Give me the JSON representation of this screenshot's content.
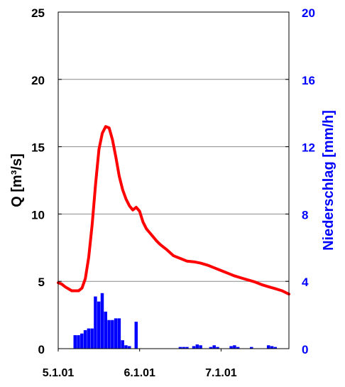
{
  "chart_data": {
    "type": "line",
    "title": "",
    "x_ticks": [
      "5.1.01",
      "6.1.01",
      "7.1.01"
    ],
    "xlim": [
      "5.1.01 00:00",
      "7.1.01 20:00"
    ],
    "y_left": {
      "label": "Q [m³/s]",
      "ticks": [
        "0",
        "5",
        "10",
        "15",
        "20",
        "25"
      ],
      "range": [
        0,
        25
      ],
      "color": "#000000"
    },
    "y_right": {
      "label": "Niederschlag [mm/h]",
      "ticks": [
        "0",
        "4",
        "8",
        "12",
        "16",
        "20"
      ],
      "range": [
        0,
        20
      ],
      "color": "#0000ff"
    },
    "grid": "horizontal",
    "series": [
      {
        "type": "line",
        "axis": "left",
        "color": "#ff0000",
        "x_hours": [
          0,
          1,
          2,
          3,
          4,
          5,
          6,
          7,
          8,
          9,
          10,
          11,
          12,
          13,
          14,
          15,
          16,
          17,
          18,
          19,
          20,
          21,
          22,
          23,
          24,
          25,
          26,
          27,
          28,
          29,
          30,
          31,
          32,
          34,
          36,
          38,
          40,
          42,
          44,
          46,
          48,
          50,
          52,
          54,
          56,
          58,
          60,
          62,
          64,
          66,
          68
        ],
        "x": [
          "5.1.01 00:00",
          "5.1.01 01:00",
          "5.1.01 02:00",
          "5.1.01 03:00",
          "5.1.01 04:00",
          "5.1.01 05:00",
          "5.1.01 06:00",
          "5.1.01 07:00",
          "5.1.01 08:00",
          "5.1.01 09:00",
          "5.1.01 10:00",
          "5.1.01 11:00",
          "5.1.01 12:00",
          "5.1.01 13:00",
          "5.1.01 14:00",
          "5.1.01 15:00",
          "5.1.01 16:00",
          "5.1.01 17:00",
          "5.1.01 18:00",
          "5.1.01 19:00",
          "5.1.01 20:00",
          "5.1.01 21:00",
          "5.1.01 22:00",
          "5.1.01 23:00",
          "6.1.01 00:00",
          "6.1.01 01:00",
          "6.1.01 02:00",
          "6.1.01 03:00",
          "6.1.01 04:00",
          "6.1.01 05:00",
          "6.1.01 06:00",
          "6.1.01 07:00",
          "6.1.01 08:00",
          "6.1.01 10:00",
          "6.1.01 12:00",
          "6.1.01 14:00",
          "6.1.01 16:00",
          "6.1.01 18:00",
          "6.1.01 20:00",
          "6.1.01 22:00",
          "7.1.01 00:00",
          "7.1.01 02:00",
          "7.1.01 04:00",
          "7.1.01 06:00",
          "7.1.01 08:00",
          "7.1.01 10:00",
          "7.1.01 12:00",
          "7.1.01 14:00",
          "7.1.01 16:00",
          "7.1.01 18:00",
          "7.1.01 20:00"
        ],
        "y": [
          4.9,
          4.8,
          4.6,
          4.45,
          4.3,
          4.3,
          4.3,
          4.5,
          5.2,
          6.8,
          9.2,
          12.2,
          14.8,
          16.0,
          16.5,
          16.4,
          15.5,
          14.2,
          12.8,
          11.8,
          11.1,
          10.6,
          10.3,
          10.5,
          10.2,
          9.4,
          8.9,
          8.6,
          8.3,
          8.0,
          7.75,
          7.55,
          7.35,
          6.9,
          6.7,
          6.5,
          6.45,
          6.35,
          6.2,
          6.0,
          5.8,
          5.6,
          5.4,
          5.25,
          5.1,
          4.95,
          4.75,
          4.6,
          4.45,
          4.3,
          4.05
        ]
      },
      {
        "type": "bar",
        "axis": "right",
        "color": "#0000ff",
        "x_hours": [
          5,
          6,
          7,
          8,
          9,
          10,
          11,
          12,
          13,
          14,
          15,
          16,
          17,
          18,
          19,
          20,
          21,
          23,
          36,
          37,
          38,
          40,
          41,
          42,
          45,
          46,
          47,
          51,
          52,
          53,
          57,
          62,
          63,
          64
        ],
        "x": [
          "5.1.01 05:00",
          "5.1.01 06:00",
          "5.1.01 07:00",
          "5.1.01 08:00",
          "5.1.01 09:00",
          "5.1.01 10:00",
          "5.1.01 11:00",
          "5.1.01 12:00",
          "5.1.01 13:00",
          "5.1.01 14:00",
          "5.1.01 15:00",
          "5.1.01 16:00",
          "5.1.01 17:00",
          "5.1.01 18:00",
          "5.1.01 19:00",
          "5.1.01 20:00",
          "5.1.01 21:00",
          "5.1.01 23:00",
          "6.1.01 12:00",
          "6.1.01 13:00",
          "6.1.01 14:00",
          "6.1.01 16:00",
          "6.1.01 17:00",
          "6.1.01 18:00",
          "6.1.01 21:00",
          "6.1.01 22:00",
          "6.1.01 23:00",
          "7.1.01 03:00",
          "7.1.01 04:00",
          "7.1.01 05:00",
          "7.1.01 11:00",
          "7.1.01 16:00",
          "7.1.01 17:00",
          "7.1.01 18:00"
        ],
        "values": [
          0.8,
          0.8,
          0.9,
          1.1,
          1.2,
          1.2,
          3.1,
          2.8,
          3.3,
          2.2,
          1.7,
          1.7,
          1.8,
          1.8,
          0.5,
          0.2,
          0.15,
          1.6,
          0.1,
          0.1,
          0.1,
          0.15,
          0.25,
          0.2,
          0.1,
          0.2,
          0.1,
          0.15,
          0.2,
          0.1,
          0.1,
          0.2,
          0.15,
          0.1
        ]
      }
    ]
  }
}
